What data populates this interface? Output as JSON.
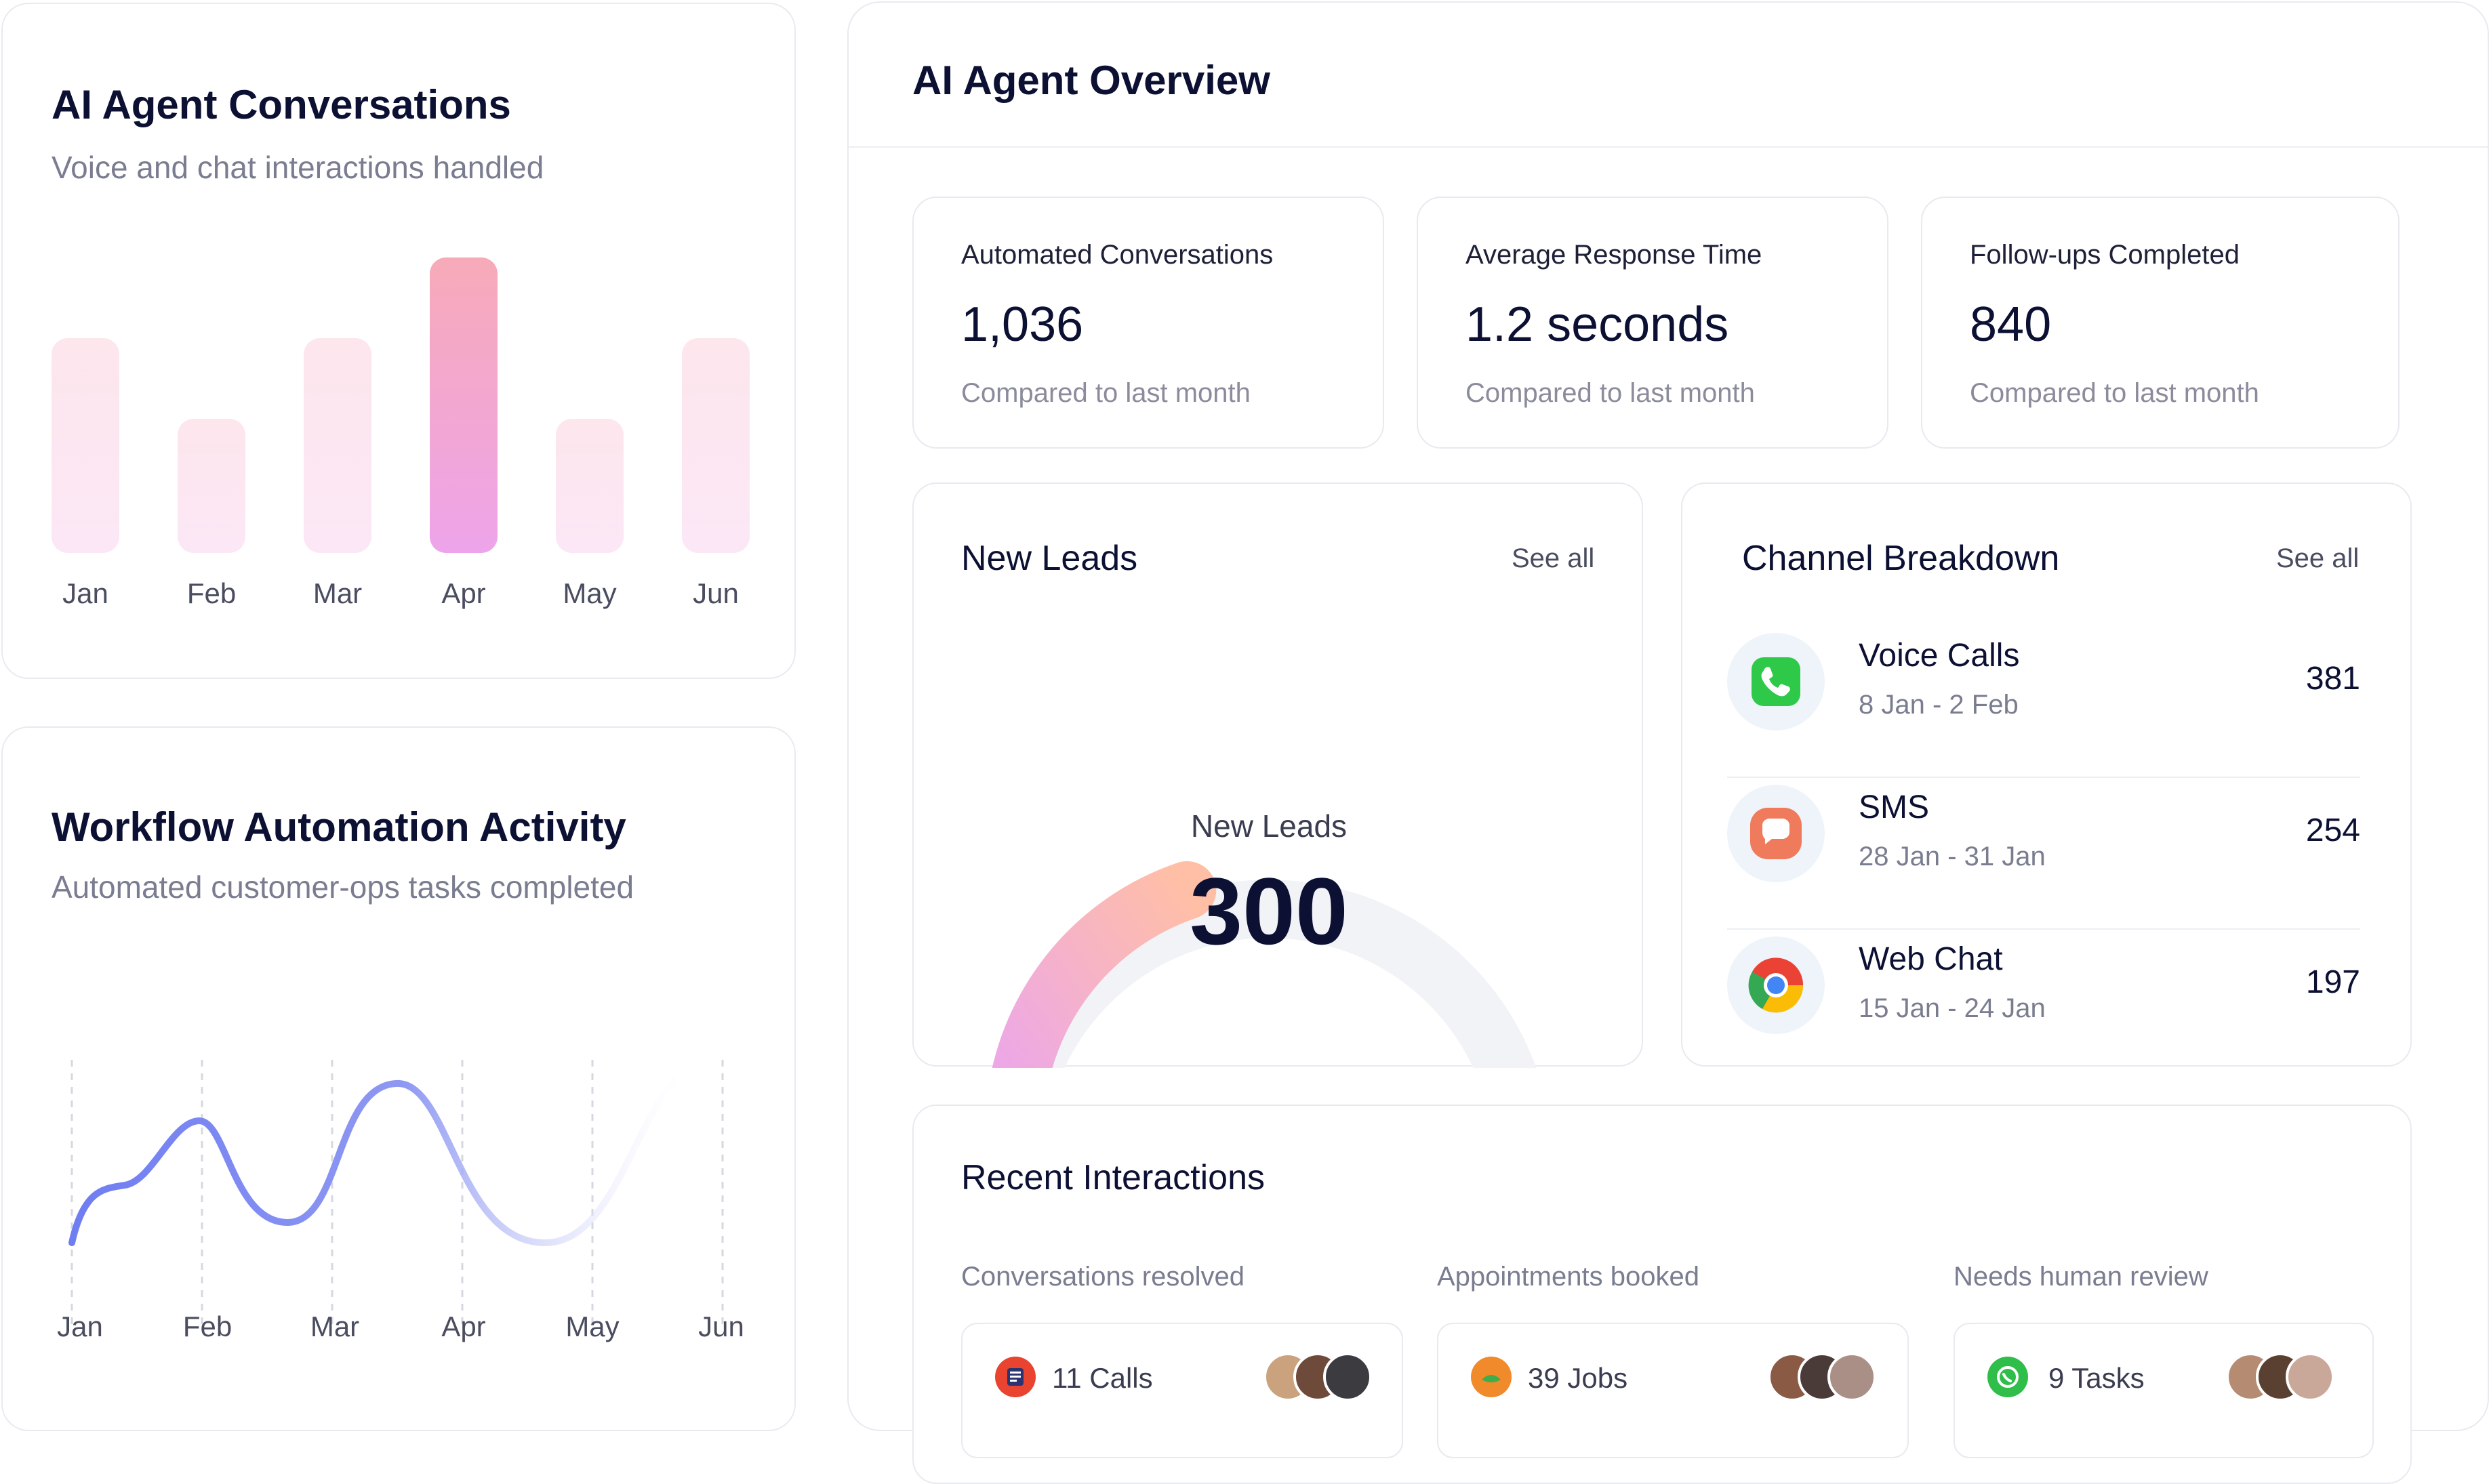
{
  "conversations": {
    "title": "AI Agent Conversations",
    "subtitle": "Voice and chat interactions handled",
    "chart_data": {
      "type": "bar",
      "categories": [
        "Jan",
        "Feb",
        "Mar",
        "Apr",
        "May",
        "Jun"
      ],
      "values": [
        3.2,
        2.0,
        3.2,
        4.4,
        2.0,
        3.2
      ],
      "highlight": "Apr",
      "ylim": [
        0,
        4.4
      ]
    }
  },
  "workflow": {
    "title": "Workflow Automation Activity",
    "subtitle": "Automated customer-ops tasks completed",
    "chart_data": {
      "type": "line",
      "categories": [
        "Jan",
        "Feb",
        "Mar",
        "Apr",
        "May",
        "Jun"
      ],
      "values": [
        0.45,
        0.8,
        0.55,
        0.95,
        0.4,
        1.0
      ],
      "color": "#6f7df2"
    }
  },
  "overview": {
    "title": "AI Agent Overview",
    "stats": [
      {
        "label": "Automated Conversations",
        "value": "1,036",
        "sub": "Compared to last month"
      },
      {
        "label": "Average Response Time",
        "value": "1.2 seconds",
        "sub": "Compared to last month"
      },
      {
        "label": "Follow-ups Completed",
        "value": "840",
        "sub": "Compared to last month"
      }
    ],
    "leads": {
      "title": "New Leads",
      "see_all": "See all",
      "gauge_label": "New Leads",
      "gauge_value": "300",
      "gauge_fraction": 0.4
    },
    "channels": {
      "title": "Channel Breakdown",
      "see_all": "See all",
      "items": [
        {
          "name": "Voice Calls",
          "dates": "8 Jan - 2 Feb",
          "count": "381",
          "icon": "phone-icon"
        },
        {
          "name": "SMS",
          "dates": "28 Jan - 31 Jan",
          "count": "254",
          "icon": "message-icon"
        },
        {
          "name": "Web Chat",
          "dates": "15 Jan - 24 Jan",
          "count": "197",
          "icon": "chrome-icon"
        }
      ]
    },
    "recent": {
      "title": "Recent Interactions",
      "columns": [
        {
          "label": "Conversations resolved",
          "value": "11 Calls"
        },
        {
          "label": "Appointments booked",
          "value": "39 Jobs"
        },
        {
          "label": "Needs human review",
          "value": "9 Tasks"
        }
      ]
    }
  }
}
